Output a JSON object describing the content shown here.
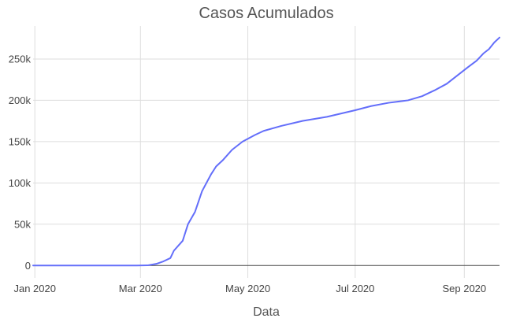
{
  "chart_data": {
    "type": "line",
    "title": "Casos Acumulados",
    "xlabel": "Data",
    "ylabel": "",
    "x_axis": {
      "type": "date",
      "range": [
        "2019-12-31",
        "2020-09-21"
      ],
      "ticks": [
        {
          "value": "2020-01-01",
          "label": "Jan 2020"
        },
        {
          "value": "2020-03-01",
          "label": "Mar 2020"
        },
        {
          "value": "2020-05-01",
          "label": "May 2020"
        },
        {
          "value": "2020-07-01",
          "label": "Jul 2020"
        },
        {
          "value": "2020-09-01",
          "label": "Sep 2020"
        }
      ]
    },
    "y_axis": {
      "range": [
        -15000,
        290000
      ],
      "ticks": [
        {
          "value": 0,
          "label": "0"
        },
        {
          "value": 50000,
          "label": "50k"
        },
        {
          "value": 100000,
          "label": "100k"
        },
        {
          "value": 150000,
          "label": "150k"
        },
        {
          "value": 200000,
          "label": "200k"
        },
        {
          "value": 250000,
          "label": "250k"
        }
      ]
    },
    "grid": true,
    "legend": "none",
    "series": [
      {
        "color": "#636efa",
        "points": [
          [
            "2019-12-31",
            0
          ],
          [
            "2020-01-10",
            0
          ],
          [
            "2020-01-20",
            0
          ],
          [
            "2020-02-01",
            0
          ],
          [
            "2020-02-15",
            0
          ],
          [
            "2020-02-28",
            0
          ],
          [
            "2020-03-05",
            200
          ],
          [
            "2020-03-10",
            2000
          ],
          [
            "2020-03-14",
            5000
          ],
          [
            "2020-03-18",
            9000
          ],
          [
            "2020-03-20",
            18000
          ],
          [
            "2020-03-25",
            30000
          ],
          [
            "2020-03-28",
            50000
          ],
          [
            "2020-04-01",
            65000
          ],
          [
            "2020-04-05",
            90000
          ],
          [
            "2020-04-10",
            110000
          ],
          [
            "2020-04-13",
            120000
          ],
          [
            "2020-04-17",
            128000
          ],
          [
            "2020-04-22",
            140000
          ],
          [
            "2020-04-28",
            150000
          ],
          [
            "2020-05-05",
            158000
          ],
          [
            "2020-05-10",
            163000
          ],
          [
            "2020-05-20",
            169000
          ],
          [
            "2020-06-01",
            175000
          ],
          [
            "2020-06-15",
            180000
          ],
          [
            "2020-07-01",
            188000
          ],
          [
            "2020-07-10",
            193000
          ],
          [
            "2020-07-20",
            197000
          ],
          [
            "2020-07-31",
            200000
          ],
          [
            "2020-08-08",
            205000
          ],
          [
            "2020-08-15",
            212000
          ],
          [
            "2020-08-22",
            220000
          ],
          [
            "2020-08-28",
            230000
          ],
          [
            "2020-09-03",
            240000
          ],
          [
            "2020-09-08",
            248000
          ],
          [
            "2020-09-12",
            257000
          ],
          [
            "2020-09-15",
            262000
          ],
          [
            "2020-09-18",
            270000
          ],
          [
            "2020-09-21",
            276000
          ]
        ]
      }
    ]
  }
}
